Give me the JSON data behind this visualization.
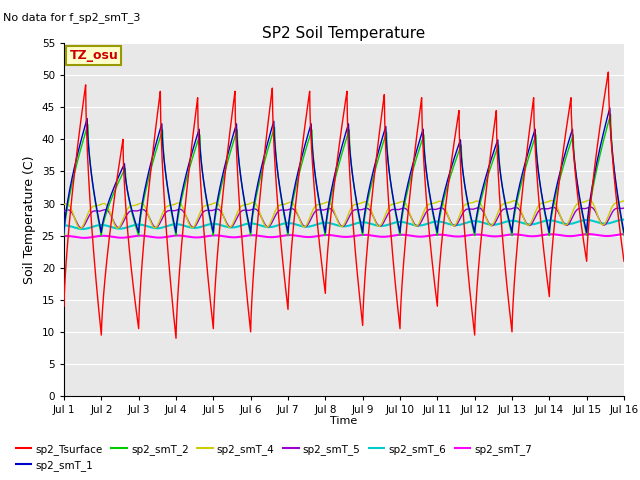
{
  "title": "SP2 Soil Temperature",
  "subtitle": "No data for f_sp2_smT_3",
  "ylabel": "Soil Temperature (C)",
  "xlabel": "Time",
  "tz_label": "TZ_osu",
  "ylim": [
    0,
    55
  ],
  "yticks": [
    0,
    5,
    10,
    15,
    20,
    25,
    30,
    35,
    40,
    45,
    50,
    55
  ],
  "xlim": [
    0,
    15
  ],
  "xtick_labels": [
    "Jul 1",
    "Jul 2",
    "Jul 3",
    "Jul 4",
    "Jul 5",
    "Jul 6",
    "Jul 7",
    "Jul 8",
    "Jul 9",
    "Jul 10",
    "Jul 11",
    "Jul 12",
    "Jul 13",
    "Jul 14",
    "Jul 15",
    "Jul 16"
  ],
  "legend": [
    {
      "label": "sp2_Tsurface",
      "color": "#ff0000"
    },
    {
      "label": "sp2_smT_1",
      "color": "#0000cc"
    },
    {
      "label": "sp2_smT_2",
      "color": "#00cc00"
    },
    {
      "label": "sp2_smT_4",
      "color": "#cccc00"
    },
    {
      "label": "sp2_smT_5",
      "color": "#9900cc"
    },
    {
      "label": "sp2_smT_6",
      "color": "#00cccc"
    },
    {
      "label": "sp2_smT_7",
      "color": "#ff00ff"
    }
  ],
  "bg_color": "#e8e8e8",
  "grid_color": "#ffffff",
  "peak_times_frac": [
    0.58,
    0.58,
    0.58,
    0.58,
    0.58,
    0.58,
    0.58,
    0.58,
    0.58,
    0.58,
    0.58,
    0.58,
    0.58,
    0.58,
    0.58
  ],
  "surface_peaks": [
    48.5,
    40.0,
    47.5,
    46.5,
    47.5,
    48.0,
    47.5,
    47.5,
    47.0,
    46.5,
    44.5,
    44.5,
    46.5,
    46.5,
    50.5
  ],
  "surface_mins": [
    14.0,
    9.5,
    10.5,
    9.0,
    10.5,
    10.0,
    13.5,
    16.0,
    11.0,
    10.5,
    14.0,
    9.5,
    10.0,
    15.5,
    21.0
  ]
}
